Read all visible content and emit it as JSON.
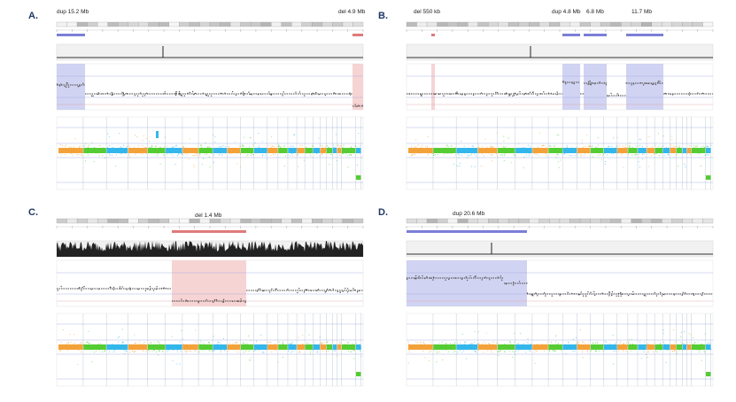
{
  "panels": [
    {
      "id": "A",
      "label": "A.",
      "events": [
        {
          "label": "dup 15.2 Mb",
          "type": "dup"
        },
        {
          "label": "del 4.9 Mb",
          "type": "del"
        }
      ]
    },
    {
      "id": "B",
      "label": "B.",
      "events": [
        {
          "label": "del 550 kb",
          "type": "del"
        },
        {
          "label": "dup 4.8 Mb",
          "type": "dup"
        },
        {
          "label": "6.8 Mb",
          "type": "dup"
        },
        {
          "label": "11.7 Mb",
          "type": "dup"
        }
      ]
    },
    {
      "id": "C",
      "label": "C.",
      "events": [
        {
          "label": "del 1.4 Mb",
          "type": "del"
        }
      ]
    },
    {
      "id": "D",
      "label": "D.",
      "events": [
        {
          "label": "dup 20.6 Mb",
          "type": "dup"
        }
      ]
    }
  ],
  "colors": {
    "dup": "#7b7fd6",
    "dup_fill": "#c9cbf0",
    "del": "#e07a7a",
    "del_fill": "#f6cdcd",
    "chrom_orange": "#f3a23a",
    "chrom_green": "#55cc33",
    "chrom_blue": "#33b7ea",
    "text": "#1f3864"
  }
}
